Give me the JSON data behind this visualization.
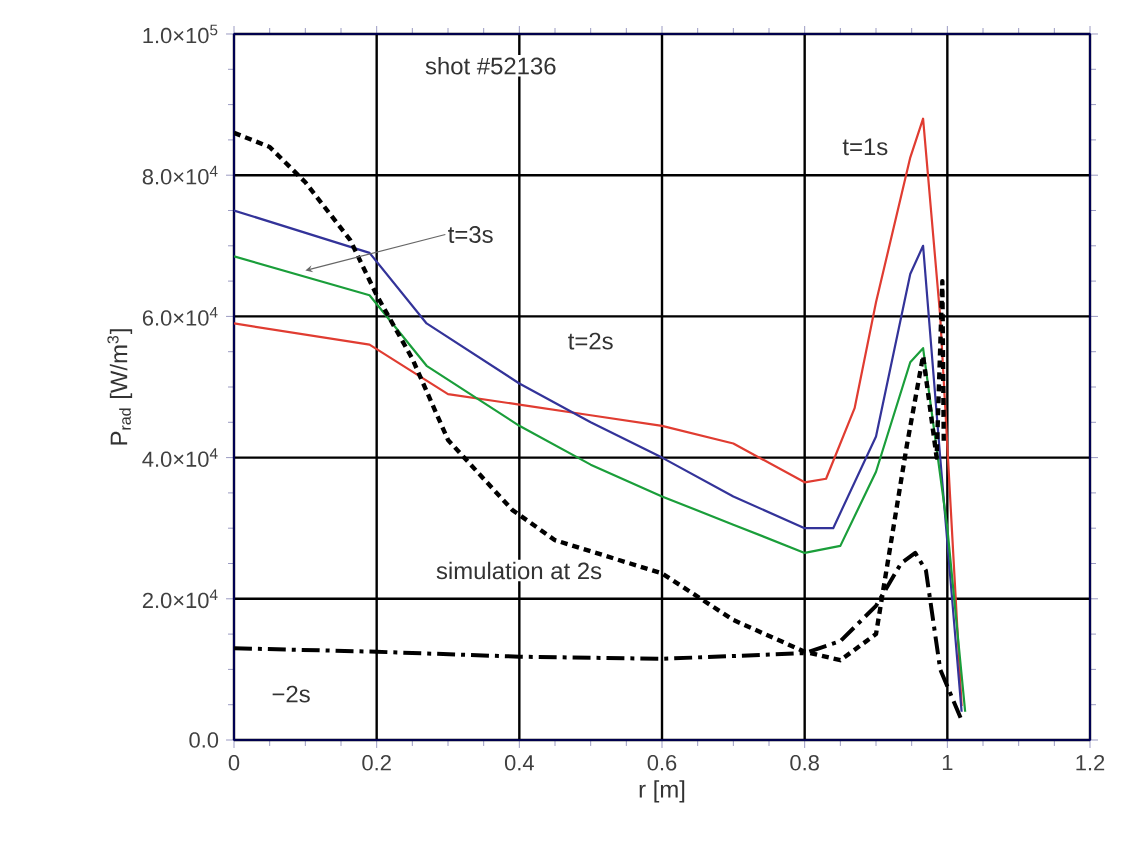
{
  "chart_data": {
    "type": "line",
    "xlabel": "r [m]",
    "ylabel": "P$_{rad}$ [W/m$^{3}$]",
    "xlim": [
      0,
      1.2
    ],
    "ylim": [
      0,
      100000
    ],
    "xticks": [
      0,
      0.2,
      0.4,
      0.6,
      0.8,
      1,
      1.2
    ],
    "yticks": [
      {
        "value": 0,
        "label": "0.0"
      },
      {
        "value": 20000,
        "label": "2.0×10$^{4}$"
      },
      {
        "value": 40000,
        "label": "4.0×10$^{4}$"
      },
      {
        "value": 60000,
        "label": "6.0×10$^{4}$"
      },
      {
        "value": 80000,
        "label": "8.0×10$^{4}$"
      },
      {
        "value": 100000,
        "label": "1.0×10$^{5}$"
      }
    ],
    "grid": true,
    "marker": "none",
    "series": [
      {
        "color": "#e03c31",
        "line_style": "solid",
        "x": [
          0,
          0.19,
          0.3,
          0.4,
          0.5,
          0.6,
          0.7,
          0.8,
          0.83,
          0.87,
          0.9,
          0.948,
          0.966,
          0.99,
          1.02
        ],
        "values": [
          59000,
          56000,
          49000,
          47500,
          46000,
          44500,
          42000,
          36500,
          37000,
          47000,
          62000,
          82500,
          88000,
          60000,
          4800
        ]
      },
      {
        "color": "#333399",
        "line_style": "solid",
        "x": [
          0,
          0.19,
          0.27,
          0.4,
          0.5,
          0.6,
          0.7,
          0.8,
          0.84,
          0.9,
          0.948,
          0.966,
          0.99,
          1.02
        ],
        "values": [
          75000,
          69000,
          59000,
          50500,
          45000,
          40000,
          34500,
          30000,
          30000,
          43000,
          66000,
          70000,
          40000,
          4000
        ]
      },
      {
        "color": "#1a9e3a",
        "line_style": "solid",
        "x": [
          0,
          0.19,
          0.27,
          0.4,
          0.5,
          0.6,
          0.7,
          0.8,
          0.85,
          0.9,
          0.948,
          0.966,
          1.0,
          1.025
        ],
        "values": [
          68500,
          63000,
          53000,
          44500,
          39000,
          34500,
          30500,
          26500,
          27500,
          38000,
          53500,
          55500,
          30000,
          4000
        ]
      },
      {
        "color": "#000000",
        "line_style": "dotted",
        "x": [
          0,
          0.05,
          0.1,
          0.163,
          0.2,
          0.25,
          0.3,
          0.39,
          0.45,
          0.6,
          0.7,
          0.8,
          0.85,
          0.9,
          0.943,
          0.966,
          0.985,
          0.993,
          0.995
        ],
        "values": [
          86000,
          84000,
          79000,
          70800,
          63000,
          54000,
          42500,
          32600,
          28300,
          23600,
          17000,
          12500,
          11300,
          15000,
          41600,
          54400,
          40000,
          65000,
          42000
        ]
      },
      {
        "color": "#000000",
        "line_style": "dashed",
        "x": [
          0,
          0.2,
          0.4,
          0.6,
          0.8,
          0.85,
          0.9,
          0.935,
          0.955,
          0.97,
          0.99,
          1.02
        ],
        "values": [
          13000,
          12500,
          11800,
          11500,
          12300,
          14000,
          19000,
          25000,
          26500,
          24000,
          10000,
          2800
        ]
      }
    ],
    "annotations": [
      "shot #52136",
      {
        "text": "t=1s",
        "x": 0.885,
        "y": 84000
      },
      {
        "text": "t=3s",
        "x": 0.1,
        "y": 66500
      },
      {
        "text": "t=2s",
        "x": 0.5,
        "y": 56500
      },
      "simulation at 2s",
      {
        "text": "−2s",
        "x": 0.08,
        "y": 6500
      }
    ]
  }
}
